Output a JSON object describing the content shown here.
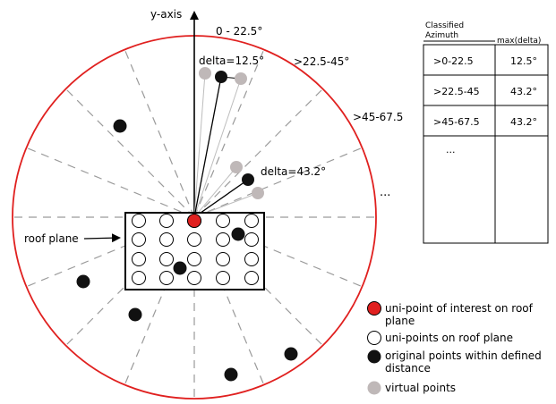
{
  "colors": {
    "circle_outline": "#e0201f",
    "sector_lines": "#9a9a9a",
    "point_of_interest": "#e0201f",
    "original_point": "#111111",
    "virtual_point": "#bfb8b8",
    "virtual_ray": "#bdbdbd"
  },
  "labels": {
    "y_axis": "y-axis",
    "sector_0": "0 - 22.5°",
    "sector_1": ">22.5-45°",
    "sector_2": ">45-67.5",
    "more_sectors": "...",
    "delta_a": "delta=12.5°",
    "delta_b": "delta=43.2°",
    "roof_plane": "roof plane"
  },
  "table": {
    "title_line1": "Classified",
    "title_line2": "Azimuth",
    "col2_header": "max(delta)",
    "rows": [
      {
        "azimuth": ">0-22.5",
        "delta": "12.5°"
      },
      {
        "azimuth": ">22.5-45",
        "delta": "43.2°"
      },
      {
        "azimuth": ">45-67.5",
        "delta": "43.2°"
      },
      {
        "azimuth": "...",
        "delta": ""
      }
    ]
  },
  "legend": [
    {
      "symbol": "point-of-interest",
      "line1": "uni-point of interest on roof",
      "line2": "plane"
    },
    {
      "symbol": "uni-point",
      "line1": "uni-points on roof plane",
      "line2": ""
    },
    {
      "symbol": "original-point",
      "line1": "original points within defined",
      "line2": "distance"
    },
    {
      "symbol": "virtual-point",
      "line1": "virtual points",
      "line2": ""
    }
  ]
}
